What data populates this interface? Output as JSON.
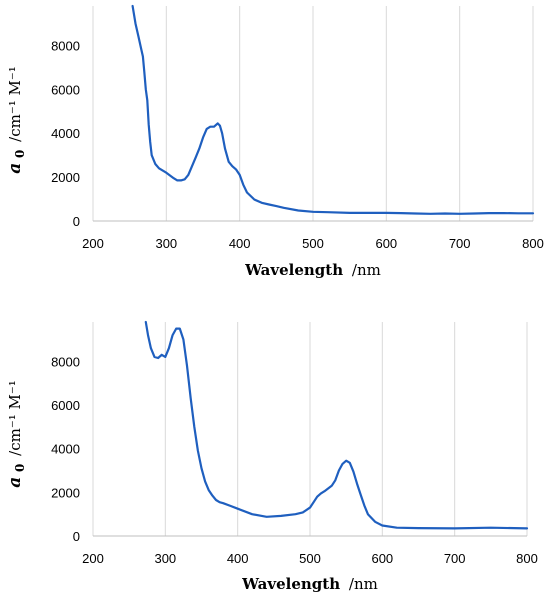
{
  "chart_data": [
    {
      "type": "line",
      "xlabel_bold": "Wavelength",
      "xlabel_unit": "/nm",
      "ylabel_symbol": "a",
      "ylabel_sub": "0",
      "ylabel_unit": "/cm⁻¹ M⁻¹",
      "xlim": [
        200,
        800
      ],
      "ylim": [
        0,
        9800
      ],
      "xticks": [
        200,
        300,
        400,
        500,
        600,
        700,
        800
      ],
      "yticks": [
        0,
        2000,
        4000,
        6000,
        8000
      ],
      "grid": "vertical",
      "color": "#1f5fbf",
      "x": [
        254,
        258,
        262,
        266,
        268,
        270,
        272,
        274,
        276,
        278,
        280,
        285,
        290,
        300,
        310,
        315,
        320,
        325,
        330,
        335,
        340,
        345,
        350,
        355,
        360,
        365,
        370,
        373,
        376,
        380,
        385,
        390,
        395,
        400,
        405,
        410,
        420,
        430,
        440,
        450,
        460,
        480,
        500,
        520,
        550,
        600,
        620,
        640,
        660,
        680,
        700,
        720,
        740,
        760,
        780,
        800
      ],
      "y": [
        9800,
        9000,
        8400,
        7800,
        7500,
        6800,
        6000,
        5500,
        4400,
        3600,
        3000,
        2600,
        2400,
        2200,
        1950,
        1850,
        1850,
        1900,
        2100,
        2500,
        2900,
        3300,
        3800,
        4200,
        4300,
        4300,
        4450,
        4350,
        4000,
        3300,
        2700,
        2500,
        2350,
        2100,
        1650,
        1300,
        980,
        830,
        750,
        680,
        600,
        480,
        420,
        400,
        370,
        370,
        360,
        340,
        330,
        340,
        330,
        340,
        360,
        360,
        350,
        350
      ]
    },
    {
      "type": "line",
      "xlabel_bold": "Wavelength",
      "xlabel_unit": "/nm",
      "ylabel_symbol": "a",
      "ylabel_sub": "0",
      "ylabel_unit": "/cm⁻¹ M⁻¹",
      "xlim": [
        200,
        800
      ],
      "ylim": [
        0,
        9800
      ],
      "xticks": [
        200,
        300,
        400,
        500,
        600,
        700,
        800
      ],
      "yticks": [
        0,
        2000,
        4000,
        6000,
        8000
      ],
      "grid": "vertical",
      "color": "#1f5fbf",
      "x": [
        273,
        276,
        280,
        285,
        290,
        295,
        300,
        305,
        310,
        315,
        320,
        325,
        330,
        335,
        340,
        345,
        350,
        355,
        360,
        365,
        370,
        375,
        380,
        390,
        400,
        420,
        440,
        460,
        480,
        490,
        500,
        505,
        510,
        515,
        520,
        530,
        535,
        540,
        545,
        550,
        555,
        560,
        565,
        570,
        575,
        580,
        590,
        600,
        620,
        650,
        700,
        750,
        800
      ],
      "y": [
        9800,
        9200,
        8600,
        8200,
        8150,
        8300,
        8200,
        8600,
        9200,
        9500,
        9500,
        9000,
        7800,
        6300,
        5000,
        3900,
        3100,
        2500,
        2100,
        1850,
        1650,
        1550,
        1500,
        1380,
        1250,
        1000,
        880,
        920,
        1000,
        1080,
        1300,
        1550,
        1800,
        1950,
        2050,
        2300,
        2550,
        3000,
        3300,
        3450,
        3350,
        2950,
        2400,
        1900,
        1400,
        1000,
        650,
        480,
        380,
        360,
        350,
        380,
        350
      ]
    }
  ]
}
